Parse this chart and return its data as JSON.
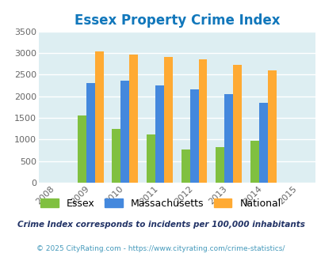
{
  "title": "Essex Property Crime Index",
  "years": [
    2008,
    2009,
    2010,
    2011,
    2012,
    2013,
    2014,
    2015
  ],
  "essex": [
    0,
    1550,
    1240,
    1120,
    775,
    820,
    975,
    0
  ],
  "massachusetts": [
    0,
    2300,
    2360,
    2250,
    2150,
    2050,
    1840,
    0
  ],
  "national": [
    0,
    3030,
    2960,
    2900,
    2860,
    2720,
    2590,
    0
  ],
  "essex_color": "#80c040",
  "mass_color": "#4488dd",
  "national_color": "#ffaa33",
  "bg_color": "#ddeef2",
  "ylim": [
    0,
    3500
  ],
  "yticks": [
    0,
    500,
    1000,
    1500,
    2000,
    2500,
    3000,
    3500
  ],
  "legend_labels": [
    "Essex",
    "Massachusetts",
    "National"
  ],
  "footnote1": "Crime Index corresponds to incidents per 100,000 inhabitants",
  "footnote2": "© 2025 CityRating.com - https://www.cityrating.com/crime-statistics/",
  "title_color": "#1177bb",
  "footnote1_color": "#223366",
  "footnote2_color": "#4499bb",
  "bar_width": 0.25
}
